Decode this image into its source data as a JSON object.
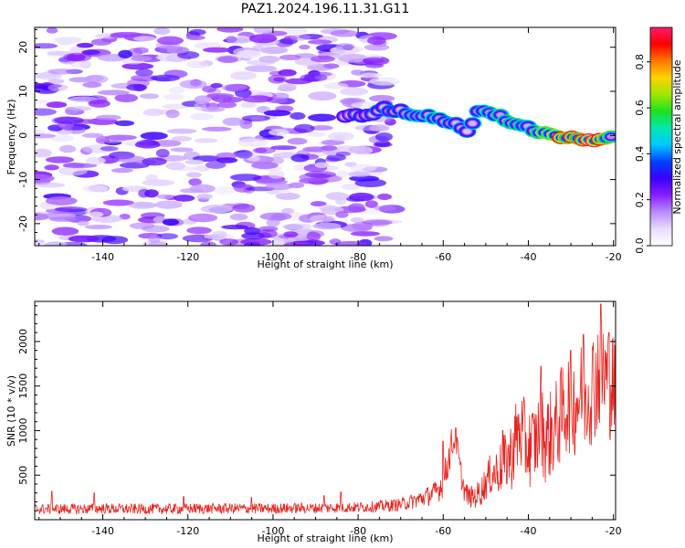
{
  "figure": {
    "title": "PAZ1.2024.196.11.31.G11"
  },
  "chart_data": [
    {
      "type": "heatmap",
      "xlabel": "Height of straight line (km)",
      "ylabel": "Frequency (Hz)",
      "xlim": [
        -156,
        -19.5
      ],
      "ylim": [
        -25,
        24.5
      ],
      "xticks": [
        -140,
        -120,
        -100,
        -80,
        -60,
        -40,
        -20
      ],
      "yticks": [
        -20,
        -10,
        0,
        10,
        20
      ],
      "colorbar": {
        "label": "Normalized spectral amplitude",
        "range": [
          0,
          0.95
        ],
        "ticks": [
          0.0,
          0.2,
          0.4,
          0.6,
          0.8
        ],
        "colormap": [
          "#ffffff",
          "#e8dcff",
          "#b98cff",
          "#8a1eff",
          "#3c00ff",
          "#0040ff",
          "#00c8ff",
          "#00e8b0",
          "#1ee01e",
          "#a0e600",
          "#ffd200",
          "#ff7800",
          "#ff0000",
          "#ff1a6e"
        ]
      },
      "noise_region": {
        "x": [
          -156,
          -72
        ],
        "y": [
          -25,
          24.5
        ],
        "amplitude": [
          0.05,
          0.3
        ]
      },
      "signal_track": {
        "x": [
          -83,
          -78,
          -74,
          -70,
          -66,
          -63,
          -60,
          -57,
          -54,
          -52,
          -50,
          -47,
          -44,
          -41,
          -38,
          -35,
          -32,
          -29,
          -26,
          -23,
          -20
        ],
        "y": [
          4.5,
          4.5,
          6,
          5.5,
          4.5,
          4.5,
          3.5,
          2.5,
          1,
          5.5,
          5.5,
          4.5,
          3,
          2.5,
          0.8,
          0.5,
          -0.5,
          -0.5,
          -1,
          -1,
          0
        ],
        "amp": [
          0.3,
          0.35,
          0.4,
          0.4,
          0.45,
          0.55,
          0.45,
          0.45,
          0.4,
          0.45,
          0.5,
          0.55,
          0.6,
          0.5,
          0.6,
          0.65,
          0.9,
          0.85,
          0.95,
          0.9,
          0.5
        ]
      }
    },
    {
      "type": "line",
      "xlabel": "Height of straight line (km)",
      "ylabel": "SNR (10 * v/v)",
      "xlim": [
        -156,
        -19.5
      ],
      "ylim": [
        0,
        2450
      ],
      "xticks": [
        -140,
        -120,
        -100,
        -80,
        -60,
        -40,
        -20
      ],
      "yticks": [
        500,
        1000,
        1500,
        2000
      ],
      "series": [
        {
          "color": "#e8231e",
          "x": [
            -156,
            -150,
            -145,
            -140,
            -135,
            -130,
            -125,
            -120,
            -115,
            -110,
            -105,
            -100,
            -95,
            -90,
            -85,
            -80,
            -75,
            -70,
            -68,
            -66,
            -64,
            -62,
            -61,
            -60,
            -59,
            -58,
            -57,
            -56,
            -55,
            -54,
            -53,
            -52,
            -51,
            -50,
            -49,
            -48,
            -47,
            -46,
            -45,
            -44,
            -43,
            -42,
            -41,
            -40,
            -39,
            -38,
            -37,
            -36,
            -35,
            -34,
            -33,
            -32,
            -31,
            -30,
            -29,
            -28,
            -27,
            -26,
            -25,
            -24,
            -23,
            -22,
            -21,
            -20,
            -19.5
          ],
          "values": [
            120,
            120,
            120,
            125,
            120,
            120,
            120,
            125,
            125,
            125,
            125,
            125,
            130,
            130,
            135,
            140,
            150,
            170,
            195,
            225,
            260,
            300,
            350,
            430,
            620,
            850,
            900,
            550,
            320,
            260,
            250,
            280,
            330,
            420,
            500,
            520,
            560,
            600,
            680,
            720,
            900,
            1000,
            900,
            800,
            850,
            900,
            1050,
            900,
            950,
            1000,
            1100,
            1200,
            1300,
            1350,
            1300,
            1400,
            1350,
            1450,
            1500,
            1600,
            1700,
            1600,
            1550,
            1500,
            1400
          ],
          "spread": [
            60,
            60,
            60,
            60,
            60,
            60,
            60,
            60,
            60,
            60,
            60,
            60,
            60,
            60,
            60,
            60,
            65,
            75,
            85,
            95,
            110,
            130,
            150,
            180,
            200,
            200,
            180,
            160,
            130,
            120,
            130,
            150,
            170,
            200,
            230,
            260,
            280,
            320,
            360,
            400,
            450,
            480,
            480,
            460,
            460,
            470,
            500,
            500,
            500,
            520,
            540,
            560,
            580,
            600,
            600,
            620,
            620,
            640,
            660,
            680,
            720,
            700,
            660,
            620,
            600
          ],
          "peaks": [
            [
              -152,
              320
            ],
            [
              -142,
              300
            ],
            [
              -121,
              260
            ],
            [
              -105,
              250
            ],
            [
              -88,
              270
            ],
            [
              -84,
              310
            ],
            [
              -60,
              880
            ],
            [
              -57,
              1030
            ],
            [
              -46,
              1000
            ],
            [
              -37,
              1720
            ],
            [
              -30,
              1900
            ],
            [
              -27,
              2080
            ],
            [
              -23,
              2420
            ],
            [
              -21,
              2100
            ]
          ]
        }
      ]
    }
  ]
}
